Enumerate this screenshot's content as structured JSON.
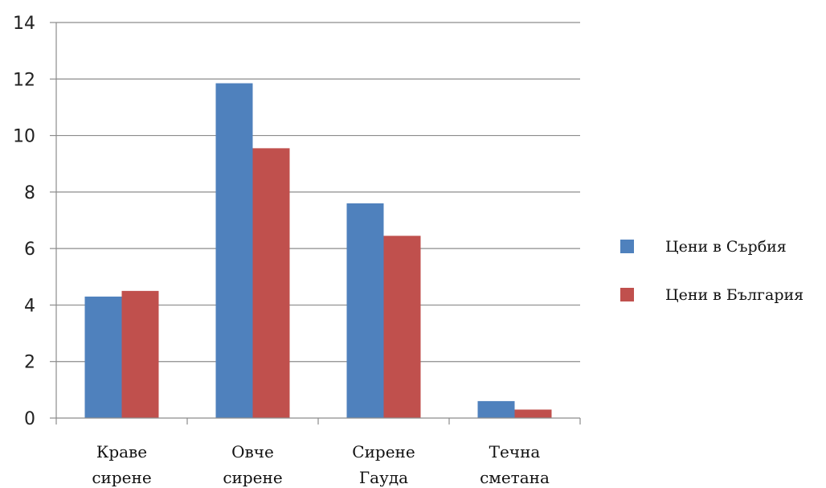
{
  "chart_data": {
    "type": "bar",
    "categories": [
      [
        "Краве",
        "сирене"
      ],
      [
        "Овче",
        "сирене"
      ],
      [
        "Сирене",
        "Гауда"
      ],
      [
        "Течна",
        "сметана"
      ]
    ],
    "series": [
      {
        "name": "Цени в Сърбия",
        "color": "#4F81BD",
        "values": [
          4.3,
          11.85,
          7.6,
          0.6
        ]
      },
      {
        "name": "Цени в България",
        "color": "#C0504D",
        "values": [
          4.5,
          9.55,
          6.45,
          0.3
        ]
      }
    ],
    "ylim": [
      0,
      14
    ],
    "yticks": [
      "0",
      "2",
      "4",
      "6",
      "8",
      "10",
      "12",
      "14"
    ],
    "grid": true,
    "legend_position": "right"
  }
}
